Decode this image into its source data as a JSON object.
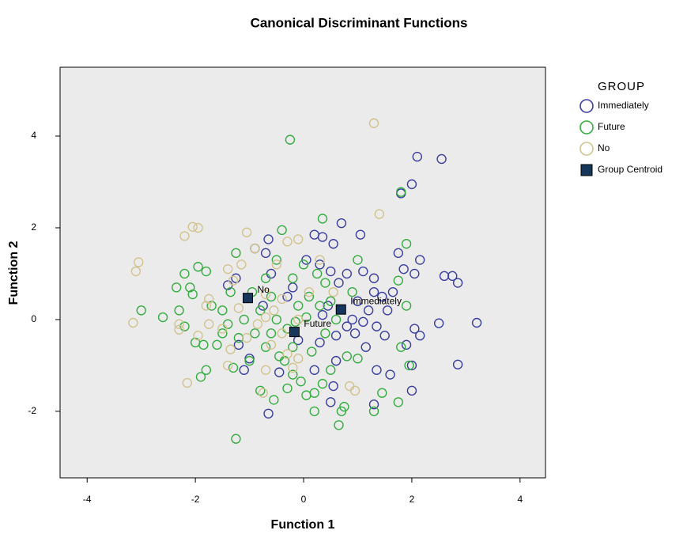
{
  "chart_data": {
    "type": "scatter",
    "title": "Canonical Discriminant Functions",
    "x_label": "Function 1",
    "y_label": "Function 2",
    "legend_title": "GROUP",
    "legend": "right",
    "grid": false,
    "plot_background": "#ebebeb",
    "xlim": [
      -4.5,
      4.47
    ],
    "ylim": [
      -3.45,
      5.5
    ],
    "xticks": [
      -4,
      -2,
      0,
      2,
      4
    ],
    "yticks": [
      -2,
      0,
      2,
      4
    ],
    "series": [
      {
        "name": "Immediately",
        "color": "#3a3f9e",
        "marker": "circle",
        "x": [
          2.1,
          2.55,
          2.0,
          1.8,
          0.7,
          1.05,
          0.2,
          0.35,
          0.55,
          1.75,
          2.15,
          1.85,
          2.6,
          2.75,
          2.85,
          2.05,
          0.8,
          1.1,
          1.3,
          1.65,
          0.65,
          1.3,
          1.45,
          1.0,
          1.2,
          1.55,
          0.45,
          0.35,
          0.9,
          1.1,
          1.35,
          2.5,
          3.2,
          2.05,
          2.15,
          1.5,
          0.95,
          0.6,
          1.15,
          1.9,
          0.3,
          0.6,
          1.6,
          2.0,
          2.85,
          1.35,
          0.55,
          2.0,
          1.3,
          0.5,
          -0.65,
          -1.2,
          -1.4,
          -1.25,
          -0.6,
          -0.7,
          -0.9,
          -0.65,
          -0.75,
          -0.2,
          -0.3,
          -1.1,
          -1.0,
          -0.45,
          0.2,
          -0.1,
          0.8,
          0.05,
          0.3,
          0.5
        ],
        "values": [
          3.55,
          3.5,
          2.95,
          2.75,
          2.1,
          1.85,
          1.85,
          1.8,
          1.65,
          1.45,
          1.3,
          1.1,
          0.95,
          0.95,
          0.8,
          1.0,
          1.0,
          1.05,
          0.9,
          0.6,
          0.8,
          0.6,
          0.5,
          0.4,
          0.2,
          0.2,
          0.3,
          0.1,
          0.0,
          -0.05,
          -0.15,
          -0.08,
          -0.07,
          -0.2,
          -0.35,
          -0.35,
          -0.3,
          -0.35,
          -0.6,
          -0.55,
          -0.5,
          -0.9,
          -1.2,
          -1.0,
          -0.98,
          -1.1,
          -1.45,
          -1.55,
          -1.85,
          -1.8,
          -2.05,
          -0.55,
          0.75,
          0.9,
          1.0,
          1.45,
          1.55,
          1.75,
          0.3,
          0.7,
          0.5,
          -1.1,
          -0.85,
          -1.15,
          -1.1,
          -0.45,
          -0.15,
          1.3,
          1.2,
          1.05
        ]
      },
      {
        "name": "Future",
        "color": "#35ad40",
        "marker": "circle",
        "x": [
          -0.25,
          0.35,
          1.8,
          1.9,
          -0.4,
          -1.25,
          -1.95,
          -2.2,
          -2.1,
          -2.35,
          -1.8,
          -3.0,
          -2.6,
          -2.3,
          -2.0,
          -2.05,
          -1.7,
          -1.5,
          -1.4,
          -1.6,
          -1.85,
          -1.2,
          -1.35,
          -0.8,
          -0.6,
          -0.5,
          -0.3,
          -0.1,
          0.1,
          0.3,
          0.5,
          -0.2,
          -0.45,
          -0.7,
          -0.9,
          -1.0,
          -1.3,
          -1.8,
          -1.9,
          -0.8,
          -0.55,
          -0.3,
          -0.05,
          0.2,
          0.35,
          0.5,
          0.8,
          1.0,
          0.7,
          0.75,
          0.65,
          1.3,
          1.75,
          -1.25,
          1.9,
          1.8,
          1.75,
          0.05,
          -0.2,
          0.15,
          0.4,
          0.6,
          0.9,
          0.4,
          0.0,
          0.25,
          -0.2,
          -0.5,
          -0.7,
          -0.95,
          -1.1,
          -0.6,
          0.2,
          1.0,
          -2.2,
          -1.5,
          1.45,
          1.95,
          -0.35,
          -0.15,
          0.05
        ],
        "values": [
          3.92,
          2.2,
          2.78,
          1.65,
          1.95,
          1.45,
          1.15,
          1.0,
          0.7,
          0.7,
          1.05,
          0.2,
          0.05,
          0.2,
          -0.5,
          0.55,
          0.3,
          0.2,
          -0.1,
          -0.55,
          -0.55,
          -0.4,
          0.6,
          0.2,
          0.5,
          0.0,
          -0.2,
          0.3,
          0.5,
          0.3,
          0.4,
          -0.6,
          -0.8,
          -0.6,
          -0.3,
          -0.9,
          -1.05,
          -1.1,
          -1.25,
          -1.55,
          -1.75,
          -1.5,
          -1.35,
          -1.6,
          -1.4,
          -1.1,
          -0.8,
          -0.85,
          -2.0,
          -1.9,
          -2.3,
          -2.0,
          -1.8,
          -2.6,
          0.3,
          -0.6,
          0.85,
          -1.65,
          -1.2,
          -0.7,
          -0.3,
          0.0,
          0.6,
          0.8,
          1.2,
          1.0,
          0.9,
          1.3,
          0.9,
          0.6,
          0.0,
          -0.3,
          -2.0,
          1.3,
          -0.15,
          -0.3,
          -1.6,
          -1.0,
          -0.9,
          -0.05,
          0.05
        ]
      },
      {
        "name": "No",
        "color": "#d2c38e",
        "marker": "circle",
        "x": [
          1.3,
          1.4,
          -1.95,
          -2.05,
          -2.2,
          -1.05,
          -0.9,
          -0.5,
          -0.3,
          -0.1,
          0.3,
          -3.05,
          -3.1,
          -1.15,
          -1.4,
          -1.3,
          -1.75,
          -1.8,
          -1.2,
          -0.7,
          -0.4,
          -0.55,
          -0.7,
          -0.85,
          -3.15,
          -2.3,
          -2.3,
          -1.95,
          -1.75,
          -1.5,
          -1.35,
          -1.05,
          -0.6,
          -0.3,
          -0.2,
          -0.1,
          -0.7,
          -1.4,
          -2.15,
          -0.75,
          0.85,
          0.95,
          0.55,
          0.1,
          -0.1,
          -0.4
        ],
        "values": [
          4.28,
          2.3,
          2.0,
          2.02,
          1.82,
          1.9,
          1.55,
          1.2,
          1.7,
          1.75,
          1.3,
          1.25,
          1.05,
          1.2,
          1.1,
          0.85,
          0.45,
          0.3,
          0.25,
          0.55,
          0.45,
          0.2,
          0.05,
          -0.1,
          -0.07,
          -0.1,
          -0.22,
          -0.35,
          -0.1,
          -0.2,
          -0.65,
          -0.4,
          -0.55,
          -0.75,
          -1.05,
          -0.85,
          -1.1,
          -1.0,
          -1.38,
          -1.6,
          -1.45,
          -1.55,
          0.6,
          0.6,
          0.0,
          -0.3
        ]
      },
      {
        "name": "Group Centroid",
        "color": "#16365c",
        "marker": "square",
        "x": [
          0.69,
          -0.17,
          -1.03
        ],
        "values": [
          0.22,
          -0.27,
          0.47
        ],
        "labels": [
          "Immediately",
          "Future",
          "No"
        ]
      }
    ]
  }
}
